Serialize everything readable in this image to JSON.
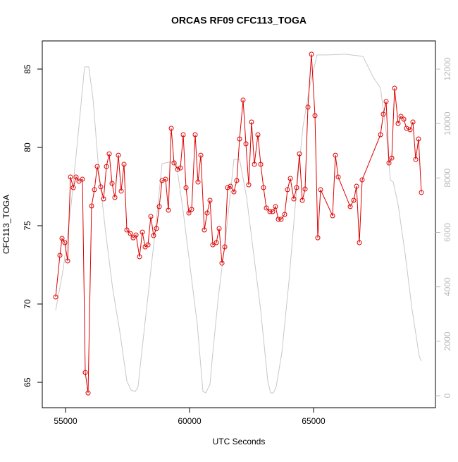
{
  "chart_data": {
    "type": "line",
    "title": "ORCAS RF09 CFC113_TOGA",
    "x_label": "UTC Seconds",
    "y_label": "CFC113_TOGA",
    "xlim": [
      54062,
      69915
    ],
    "xticks": [
      55000,
      60000,
      65000
    ],
    "ylim": [
      63.38,
      86.8
    ],
    "yticks": [
      65,
      70,
      75,
      80,
      85
    ],
    "y2lim": [
      -440,
      13036
    ],
    "y2ticks": [
      0,
      2000,
      4000,
      6000,
      8000,
      10000,
      12000
    ],
    "series": [
      {
        "color": "#dd0000",
        "markers": true,
        "x": [
          54602,
          54773,
          54858,
          54972,
          55085,
          55199,
          55312,
          55426,
          55540,
          55682,
          55795,
          55909,
          56051,
          56165,
          56278,
          56420,
          56534,
          56648,
          56761,
          56875,
          56989,
          57131,
          57244,
          57358,
          57472,
          57614,
          57727,
          57841,
          57983,
          58097,
          58210,
          58324,
          58438,
          58551,
          58665,
          58779,
          58892,
          59034,
          59148,
          59262,
          59375,
          59517,
          59631,
          59744,
          59858,
          59972,
          60085,
          60227,
          60341,
          60455,
          60597,
          60710,
          60824,
          60938,
          61080,
          61193,
          61307,
          61421,
          61534,
          61648,
          61790,
          61904,
          62017,
          62159,
          62273,
          62387,
          62500,
          62614,
          62756,
          62870,
          62983,
          63097,
          63239,
          63353,
          63466,
          63580,
          63693,
          63836,
          63949,
          64063,
          64205,
          64318,
          64432,
          64546,
          64659,
          64773,
          64915,
          65057,
          65171,
          65284,
          65767,
          65881,
          65995,
          66478,
          66620,
          66733,
          66847,
          66960,
          67699,
          67813,
          67927,
          68040,
          68154,
          68267,
          68409,
          68523,
          68637,
          68750,
          68892,
          69006,
          69120,
          69233,
          69347
        ],
        "values": [
          70.45,
          73.11,
          74.19,
          73.92,
          72.75,
          78.11,
          77.43,
          78.11,
          77.84,
          77.97,
          65.63,
          64.32,
          76.26,
          77.3,
          78.78,
          77.48,
          76.71,
          78.78,
          79.59,
          77.7,
          76.8,
          79.5,
          77.21,
          78.92,
          74.73,
          74.5,
          74.23,
          74.41,
          73.02,
          74.59,
          73.65,
          73.78,
          75.59,
          74.37,
          74.82,
          76.22,
          77.88,
          77.97,
          75.99,
          81.22,
          79.01,
          78.6,
          78.69,
          80.81,
          77.43,
          75.81,
          76.04,
          80.81,
          77.79,
          79.5,
          74.73,
          75.81,
          76.62,
          73.78,
          73.92,
          74.82,
          72.61,
          73.65,
          77.43,
          77.52,
          77.16,
          77.88,
          80.54,
          83.02,
          80.23,
          77.61,
          81.62,
          78.92,
          80.81,
          78.92,
          77.43,
          76.13,
          75.9,
          75.9,
          76.22,
          75.41,
          75.41,
          75.72,
          77.3,
          78.02,
          76.71,
          77.43,
          79.59,
          76.62,
          77.34,
          82.57,
          85.95,
          82.03,
          74.23,
          77.3,
          75.63,
          79.5,
          78.11,
          76.22,
          76.62,
          77.52,
          73.92,
          77.93,
          80.81,
          82.12,
          82.93,
          79.01,
          79.32,
          83.78,
          81.53,
          81.98,
          81.8,
          81.22,
          81.13,
          81.62,
          79.23,
          80.54,
          77.12
        ]
      },
      {
        "color": "#c8c8c8",
        "axis": "y2",
        "markers": false,
        "x": [
          54602,
          54915,
          55199,
          55483,
          55767,
          55938,
          56108,
          56335,
          56619,
          56903,
          57188,
          57472,
          57642,
          57813,
          57926,
          58040,
          58324,
          58608,
          58892,
          59176,
          59460,
          59744,
          60029,
          60313,
          60540,
          60654,
          60824,
          60938,
          61165,
          61449,
          61790,
          62017,
          62301,
          62585,
          62870,
          63154,
          63267,
          63381,
          63495,
          63722,
          64006,
          64290,
          64574,
          64858,
          65142,
          65568,
          66279,
          66989,
          67415,
          67699,
          67927,
          68097,
          68211,
          68409,
          68693,
          68977,
          69261,
          69347
        ],
        "values": [
          3136,
          4692,
          6765,
          9357,
          12079,
          12079,
          10912,
          8320,
          5988,
          3914,
          2359,
          544,
          207,
          156,
          337,
          1322,
          3655,
          5988,
          8528,
          8580,
          8580,
          6765,
          4692,
          2618,
          156,
          104,
          415,
          1581,
          3655,
          5728,
          8683,
          8683,
          7284,
          5210,
          3136,
          544,
          104,
          104,
          337,
          1581,
          4173,
          7284,
          9876,
          11431,
          12519,
          12519,
          12545,
          12468,
          11690,
          11301,
          9746,
          7932,
          7854,
          7024,
          5210,
          3136,
          1452,
          1270
        ]
      }
    ]
  }
}
